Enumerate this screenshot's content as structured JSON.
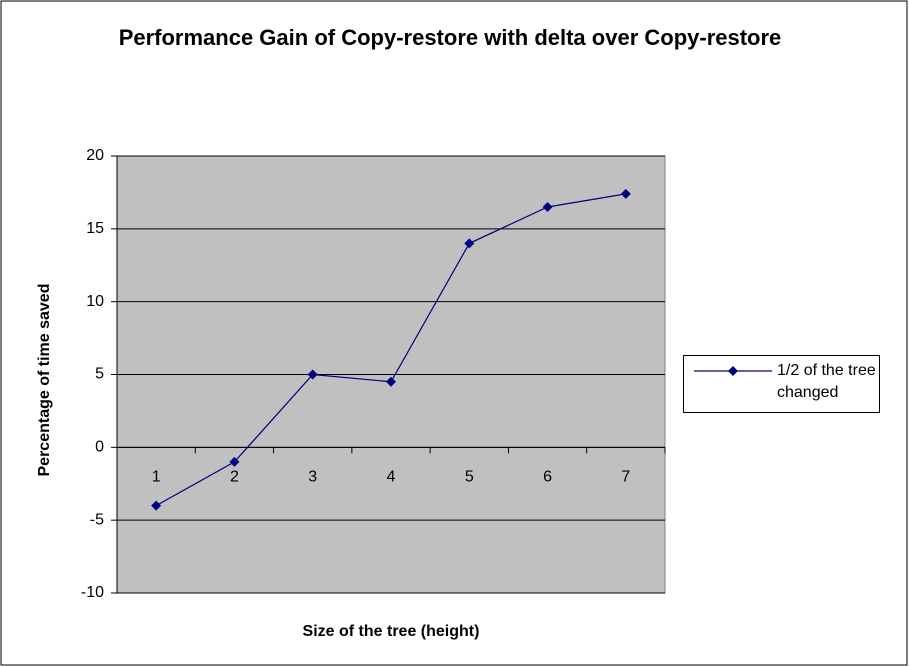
{
  "chart_data": {
    "type": "line",
    "title": "Performance Gain of Copy-restore with delta over Copy-restore",
    "x_label": "Size of the tree (height)",
    "y_label": "Percentage of time saved",
    "categories": [
      "1",
      "2",
      "3",
      "4",
      "5",
      "6",
      "7"
    ],
    "series": [
      {
        "name": "1/2 of the tree changed",
        "color": "#000080",
        "values": [
          -4,
          -1,
          5,
          4.5,
          14,
          16.5,
          17.4
        ]
      }
    ],
    "ylim": [
      -10,
      20
    ],
    "yticks": [
      -10,
      -5,
      0,
      5,
      10,
      15,
      20
    ],
    "grid": true,
    "plot_background": "#c0c0c0",
    "legend": "right"
  }
}
